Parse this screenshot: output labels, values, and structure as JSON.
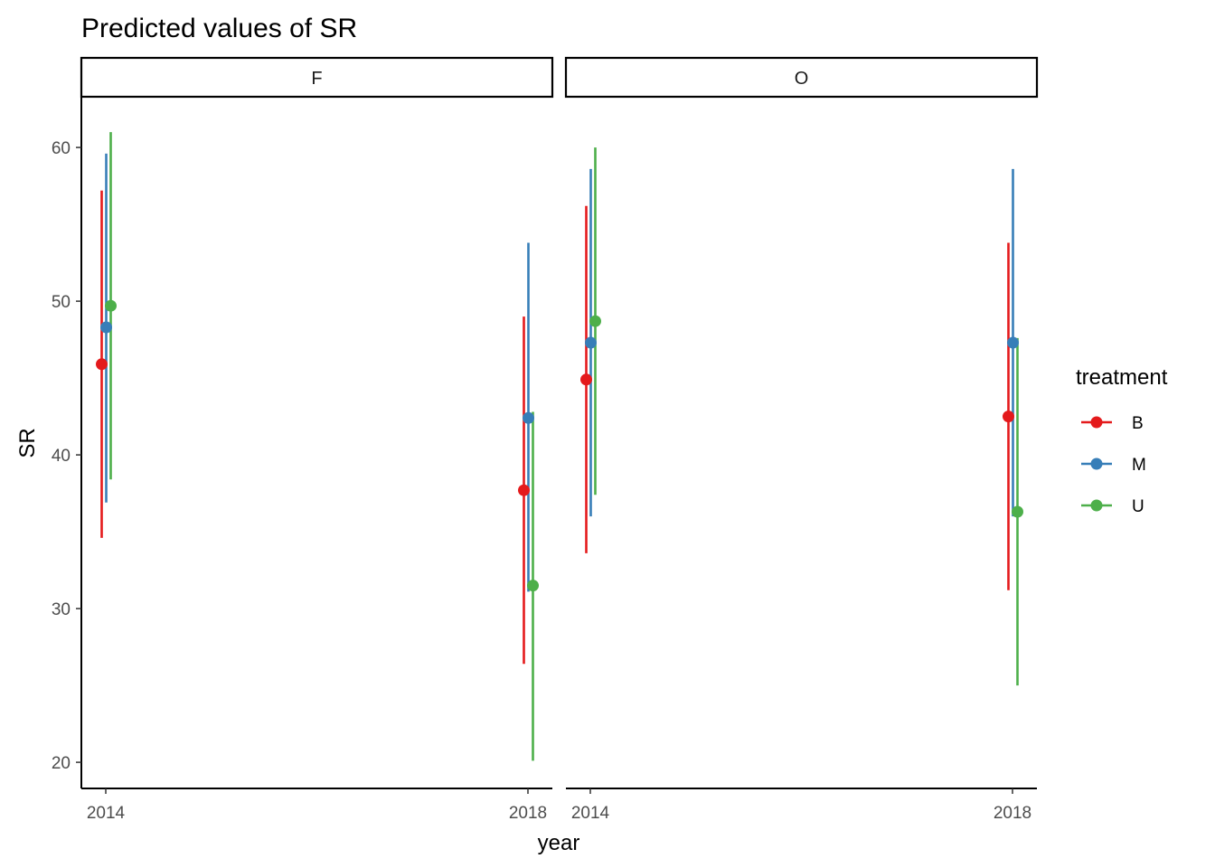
{
  "chart_data": {
    "type": "scatter",
    "title": "Predicted values of SR",
    "xlabel": "year",
    "ylabel": "SR",
    "ylim": [
      18.3,
      63.3
    ],
    "yticks": [
      20,
      30,
      40,
      50,
      60
    ],
    "grid": false,
    "legend": {
      "title": "treatment",
      "position": "right"
    },
    "x_categories": [
      "2014",
      "2018"
    ],
    "facets": [
      {
        "label": "F",
        "series": [
          {
            "name": "B",
            "color": "#e41a1c",
            "points": [
              {
                "x": "2014",
                "y": 45.9,
                "lower": 34.6,
                "upper": 57.2
              },
              {
                "x": "2018",
                "y": 37.7,
                "lower": 26.4,
                "upper": 49.0
              }
            ]
          },
          {
            "name": "M",
            "color": "#377eb8",
            "points": [
              {
                "x": "2014",
                "y": 48.3,
                "lower": 36.9,
                "upper": 59.6
              },
              {
                "x": "2018",
                "y": 42.4,
                "lower": 31.1,
                "upper": 53.8
              }
            ]
          },
          {
            "name": "U",
            "color": "#4daf4a",
            "points": [
              {
                "x": "2014",
                "y": 49.7,
                "lower": 38.4,
                "upper": 61.0
              },
              {
                "x": "2018",
                "y": 31.5,
                "lower": 20.1,
                "upper": 42.8
              }
            ]
          }
        ]
      },
      {
        "label": "O",
        "series": [
          {
            "name": "B",
            "color": "#e41a1c",
            "points": [
              {
                "x": "2014",
                "y": 44.9,
                "lower": 33.6,
                "upper": 56.2
              },
              {
                "x": "2018",
                "y": 42.5,
                "lower": 31.2,
                "upper": 53.8
              }
            ]
          },
          {
            "name": "M",
            "color": "#377eb8",
            "points": [
              {
                "x": "2014",
                "y": 47.3,
                "lower": 36.0,
                "upper": 58.6
              },
              {
                "x": "2018",
                "y": 47.3,
                "lower": 36.0,
                "upper": 58.6
              }
            ]
          },
          {
            "name": "U",
            "color": "#4daf4a",
            "points": [
              {
                "x": "2014",
                "y": 48.7,
                "lower": 37.4,
                "upper": 60.0
              },
              {
                "x": "2018",
                "y": 36.3,
                "lower": 25.0,
                "upper": 47.6
              }
            ]
          }
        ]
      }
    ]
  }
}
